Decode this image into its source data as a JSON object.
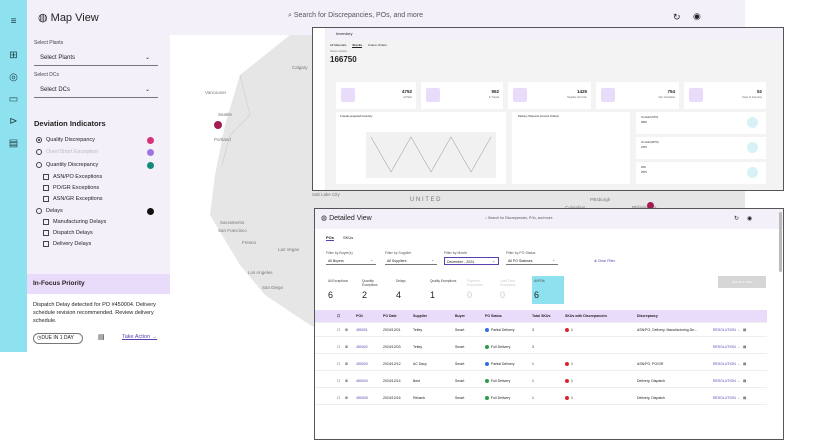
{
  "map_view": {
    "title": "Map View",
    "search_placeholder": "Search for Discrepancies, POs, and more",
    "rail_icons": [
      "menu-icon",
      "grid-icon",
      "inventory-icon",
      "map-icon",
      "filter-icon",
      "settings-icon"
    ],
    "filters": {
      "plants_label": "Select Plants",
      "plants_value": "Select Plants",
      "dcs_label": "Select DCs",
      "dcs_value": "Select DCs"
    },
    "deviation_title": "Deviation Indicators",
    "options": [
      {
        "label": "Quality Discrepancy",
        "type": "radio",
        "checked": true,
        "dot_color": "#d6327a"
      },
      {
        "label": "Over/Short Exception",
        "type": "radio",
        "checked": false,
        "dot_color": "#7a3fd6",
        "muted": true
      },
      {
        "label": "Quantity Discrepancy",
        "type": "radio",
        "checked": false,
        "dot_color": "#138a7a"
      },
      {
        "label": "ASN/PO Exceptions",
        "type": "check"
      },
      {
        "label": "PO/GR Exceptions",
        "type": "check"
      },
      {
        "label": "ASN/GR Exceptions",
        "type": "check"
      },
      {
        "label": "Delays",
        "type": "radio",
        "checked": false,
        "dot_color": "#111111"
      },
      {
        "label": "Manufacturing Delays",
        "type": "check"
      },
      {
        "label": "Dispatch Delays",
        "type": "check"
      },
      {
        "label": "Delivery Delays",
        "type": "check"
      }
    ],
    "focus": {
      "title": "In-Focus Priority",
      "message": "Dispatch Delay detected for PO #450004. Delivery schedule revision recommended. Review delivery schedule.",
      "due": "DUE IN 1 DAY",
      "action": "Take Action"
    },
    "map_labels": {
      "calgary": "Calgary",
      "vancouver": "Vancouver",
      "seattle": "Seattle",
      "portland": "Portland",
      "sacramento": "Sacramento",
      "sanfrancisco": "San Francisco",
      "fresno": "Fresno",
      "lasvegas": "Las Vegas",
      "losangeles": "Los Angeles",
      "sandiego": "San Diego",
      "saltlake": "Salt Lake City",
      "united": "U N I T E D",
      "pittsburgh": "Pittsburgh",
      "philadelphia": "Philadelphia",
      "columbus": "Columbus"
    }
  },
  "inventory": {
    "title": "Inventory",
    "tabs": [
      "All Materials",
      "Stocks",
      "Future Orders"
    ],
    "select_location": "Select Location",
    "total": "166750",
    "cards": [
      {
        "value": "4752",
        "label": "At Plant"
      },
      {
        "value": "952",
        "label": "In Transit"
      },
      {
        "value": "1425",
        "label": "Supplier Committ."
      },
      {
        "value": "754",
        "label": "Non Compliant"
      },
      {
        "value": "52",
        "label": "Days of Inventory"
      }
    ],
    "chart_title": "6 weeks projected Inventory",
    "chart_title2": "Delivery Shipment (Current Orders)",
    "side_cards": [
      {
        "label": "On Hold (STO)",
        "value": "9532"
      },
      {
        "label": "On Hold (MTO)",
        "value": "2376"
      },
      {
        "label": "FPA",
        "value": "2579"
      }
    ]
  },
  "detail": {
    "title": "Detailed View",
    "search_placeholder": "Search for Discrepancies, POs, and more",
    "tabs": [
      "POs",
      "SKUs"
    ],
    "filters": [
      {
        "label": "Filter by Buyer(s)",
        "value": "All Buyers"
      },
      {
        "label": "Filter by Supplier",
        "value": "All Suppliers"
      },
      {
        "label": "Filter by Month",
        "value": "December - 2024"
      },
      {
        "label": "Filter by PO Status",
        "value": "All PO Statuses"
      }
    ],
    "clear_filter": "Clear Filter",
    "kpis": [
      {
        "label": "All Exceptions",
        "value": "6"
      },
      {
        "label": "Quantity Exceptions",
        "value": "2"
      },
      {
        "label": "Delays",
        "value": "4"
      },
      {
        "label": "Quality Exceptions",
        "value": "1"
      },
      {
        "label": "Payment Exceptions",
        "value": "0"
      },
      {
        "label": "Lead Time Exceptions",
        "value": "0"
      },
      {
        "label": "All POs",
        "value": "6"
      }
    ],
    "view_all": "View all in table",
    "columns": [
      "PO#",
      "PO Date",
      "Supplier",
      "Buyer",
      "PO Status",
      "Total SKUs",
      "SKUs with Discrepancies",
      "Discrepancy"
    ],
    "rows": [
      {
        "po": "450001",
        "date": "2024/12/01",
        "supplier": "Tetley",
        "buyer": "Smart",
        "status": "Partial Delivery",
        "status_color": "#2f6fe0",
        "skus": "3",
        "disc_skus": "1",
        "discrepancy": "ASN/PO, Delivery, Manufacturing De...",
        "action": "RESOLUTION"
      },
      {
        "po": "450002",
        "date": "2024/12/03",
        "supplier": "Tetley",
        "buyer": "Smart",
        "status": "Full Delivery",
        "status_color": "#2a9d4a",
        "skus": "3",
        "disc_skus": "",
        "discrepancy": "",
        "action": "RESOLUTION"
      },
      {
        "po": "450003",
        "date": "2024/12/12",
        "supplier": "AC Davy",
        "buyer": "Smart",
        "status": "Partial Delivery",
        "status_color": "#2f6fe0",
        "skus": "1",
        "disc_skus": "1",
        "discrepancy": "ASN/PO, PO/GR",
        "action": "RESOLUTION"
      },
      {
        "po": "450004",
        "date": "2024/12/14",
        "supplier": "Best",
        "buyer": "Smart",
        "status": "Full Delivery",
        "status_color": "#2a9d4a",
        "skus": "1",
        "disc_skus": "1",
        "discrepancy": "Delivery, Dispatch",
        "action": "RESOLUTION"
      },
      {
        "po": "450005",
        "date": "2024/12/16",
        "supplier": "Rebank",
        "buyer": "Smart",
        "status": "Full Delivery",
        "status_color": "#2a9d4a",
        "skus": "1",
        "disc_skus": "1",
        "discrepancy": "Delivery, Dispatch",
        "action": "RESOLUTION"
      }
    ]
  }
}
